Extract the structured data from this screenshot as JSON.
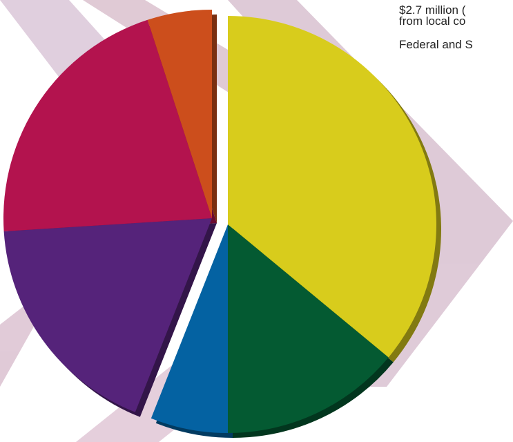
{
  "chart_data": {
    "type": "pie",
    "values": [
      36,
      14,
      6,
      18,
      21,
      5
    ],
    "colors": [
      "#d8cc1c",
      "#045a32",
      "#0462a2",
      "#55237a",
      "#b3134e",
      "#cc4e1c"
    ],
    "annotations": [
      "$2.7 million (",
      "from local co",
      "Federal and S"
    ]
  }
}
